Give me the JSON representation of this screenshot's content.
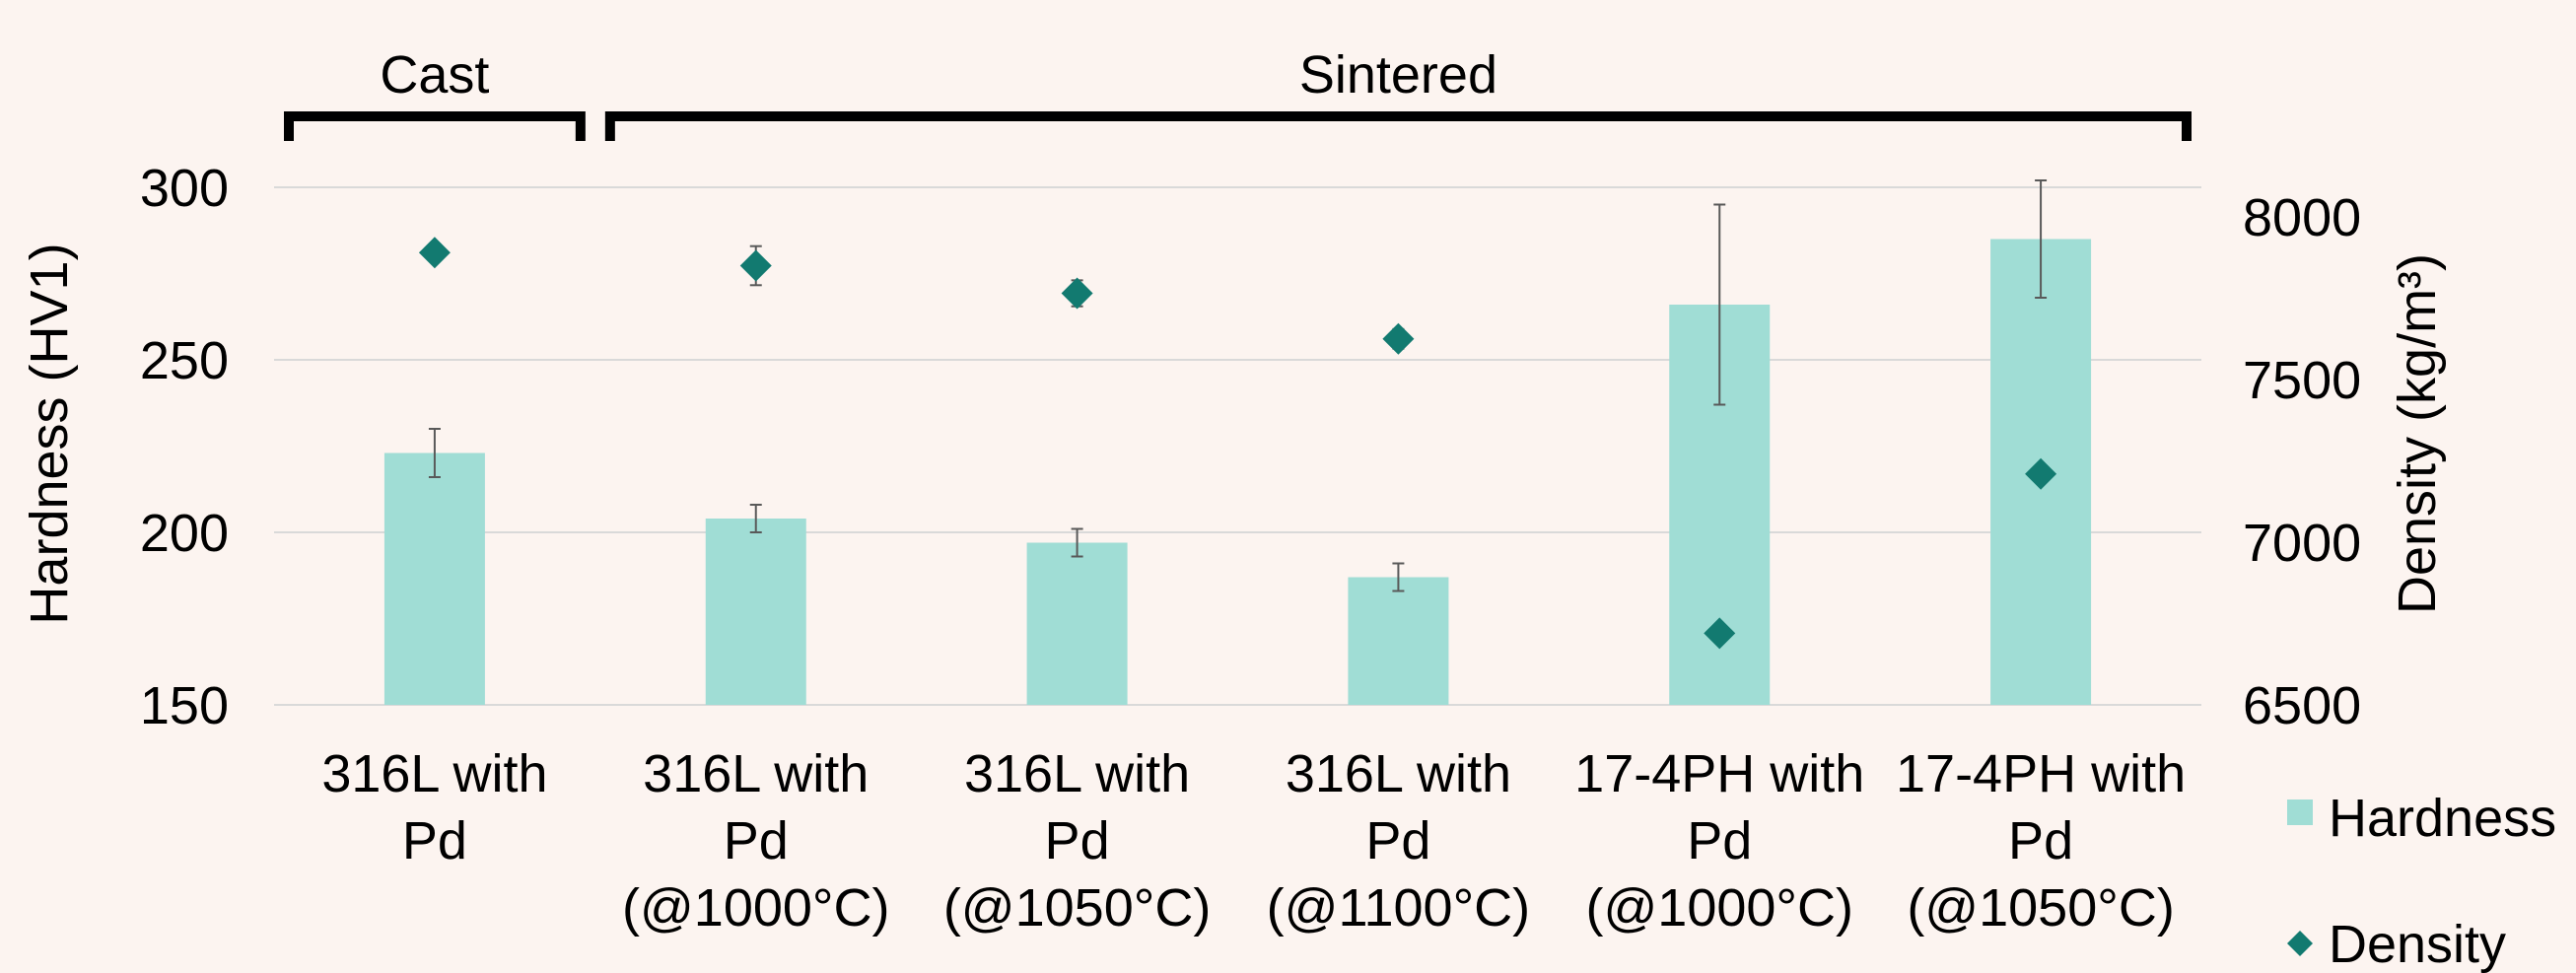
{
  "chart_data": {
    "type": "bar",
    "categories": [
      [
        "316L with",
        "Pd"
      ],
      [
        "316L with",
        "Pd",
        "(@1000°C)"
      ],
      [
        "316L with",
        "Pd",
        "(@1050°C)"
      ],
      [
        "316L with",
        "Pd",
        "(@1100°C)"
      ],
      [
        "17-4PH with",
        "Pd",
        "(@1000°C)"
      ],
      [
        "17-4PH with",
        "Pd",
        "(@1050°C)"
      ]
    ],
    "groups": [
      {
        "label": "Cast",
        "from": 0,
        "to": 0
      },
      {
        "label": "Sintered",
        "from": 1,
        "to": 5
      }
    ],
    "ylabel": "Hardness (HV1)",
    "y2label": "Density (kg/m³)",
    "ylim": [
      150,
      300
    ],
    "y2lim": [
      6500,
      8000
    ],
    "yticks": [
      "150",
      "200",
      "250",
      "300"
    ],
    "y2ticks": [
      "6500",
      "7000",
      "7500",
      "8000"
    ],
    "series": [
      {
        "name": "Hardness",
        "type": "bar",
        "axis": "left",
        "color": "#a0ddd5",
        "values": [
          223,
          204,
          197,
          187,
          266,
          285
        ],
        "error": [
          7,
          4,
          4,
          4,
          29,
          17
        ]
      },
      {
        "name": "Density",
        "type": "scatter",
        "axis": "right",
        "marker": "diamond",
        "color": "#127a70",
        "values": [
          7890,
          7850,
          7765,
          7625,
          6720,
          7210
        ],
        "error": [
          0,
          60,
          40,
          30,
          0,
          0
        ]
      }
    ],
    "grid": true,
    "legend": "right"
  }
}
